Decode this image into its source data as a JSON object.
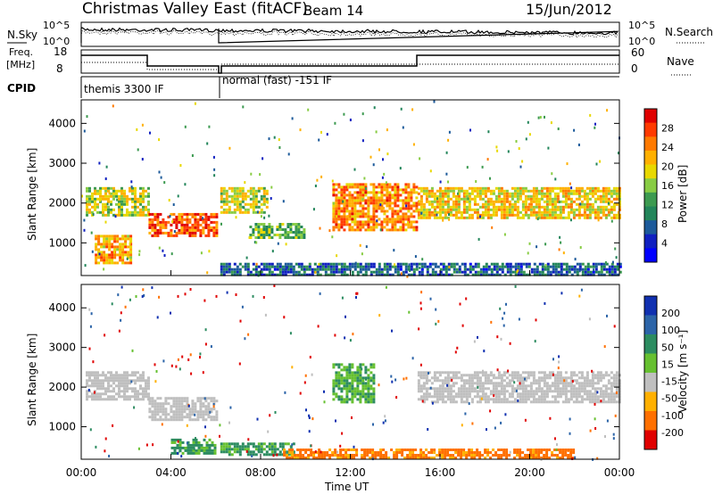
{
  "header": {
    "title": "Christmas Valley East (fitACF)",
    "beam": "Beam 14",
    "date": "15/Jun/2012"
  },
  "panels": {
    "nsky": {
      "label": "N.Sky",
      "ticks": [
        "10^5",
        "10^0"
      ],
      "right_ticks": [
        "10^5",
        "10^0"
      ],
      "right_label": "N.Search"
    },
    "freq": {
      "label_line1": "Freq.",
      "label_line2": "[MHz]",
      "ticks": [
        "18",
        "8"
      ],
      "right_ticks": [
        "60",
        "0"
      ],
      "right_label": "Nave"
    },
    "cpid": {
      "label": "CPID",
      "modes": [
        "themis 3300 IF",
        "normal (fast) -151 IF"
      ]
    }
  },
  "colorbars": {
    "power": {
      "label": "Power [dB]",
      "ticks": [
        "28",
        "24",
        "20",
        "16",
        "12",
        "8",
        "4"
      ],
      "colors": [
        "#e00000",
        "#ff3a00",
        "#ff7a00",
        "#ffb000",
        "#e8d800",
        "#88cc44",
        "#3c9a50",
        "#22855a",
        "#1c5a9a",
        "#1020c0",
        "#0000ff"
      ]
    },
    "velocity": {
      "label": "Velocity [m s⁻¹]",
      "ticks": [
        "200",
        "100",
        "50",
        "15",
        "-15",
        "-50",
        "-100",
        "-200"
      ],
      "colors": [
        "#1030b0",
        "#2c64a8",
        "#2c8c60",
        "#66c030",
        "#bfbfbf",
        "#ffb000",
        "#ff7000",
        "#e00000"
      ]
    }
  },
  "axes": {
    "ylabel": "Slant Range [km]",
    "yticks": [
      "4000",
      "3000",
      "2000",
      "1000"
    ],
    "xlabel": "Time UT",
    "xticks": [
      "00:00",
      "04:00",
      "08:00",
      "12:00",
      "16:00",
      "20:00",
      "00:00"
    ]
  },
  "chart_data": [
    {
      "type": "heatmap",
      "title": "",
      "xlabel": "",
      "ylabel": "Slant Range [km]",
      "x_range_hours": [
        0,
        24
      ],
      "ylim_km": [
        180,
        4590
      ],
      "colorbar": "Power [dB]",
      "bands": [
        {
          "x": [
            0.2,
            3.0
          ],
          "y": [
            1700,
            2400
          ],
          "value_db": 18
        },
        {
          "x": [
            0.6,
            2.2
          ],
          "y": [
            500,
            1200
          ],
          "value_db": 22
        },
        {
          "x": [
            3.0,
            6.0
          ],
          "y": [
            1150,
            1750
          ],
          "value_db": 26
        },
        {
          "x": [
            6.2,
            8.3
          ],
          "y": [
            1750,
            2400
          ],
          "value_db": 18
        },
        {
          "x": [
            7.5,
            10.0
          ],
          "y": [
            1100,
            1500
          ],
          "value_db": 14
        },
        {
          "x": [
            11.2,
            15.0
          ],
          "y": [
            1300,
            2500
          ],
          "value_db": 24
        },
        {
          "x": [
            15.0,
            24.0
          ],
          "y": [
            1600,
            2400
          ],
          "value_db": 20
        },
        {
          "x": [
            6.2,
            24.0
          ],
          "y": [
            200,
            500
          ],
          "value_db": 8
        }
      ]
    },
    {
      "type": "heatmap",
      "title": "",
      "xlabel": "Time UT",
      "ylabel": "Slant Range [km]",
      "x_range_hours": [
        0,
        24
      ],
      "ylim_km": [
        180,
        4590
      ],
      "colorbar": "Velocity [m s⁻¹]",
      "bands": [
        {
          "x": [
            0.2,
            3.0
          ],
          "y": [
            1700,
            2400
          ],
          "value_ms": 0
        },
        {
          "x": [
            3.0,
            6.0
          ],
          "y": [
            1150,
            1750
          ],
          "value_ms": 0
        },
        {
          "x": [
            4.0,
            6.0
          ],
          "y": [
            300,
            700
          ],
          "value_ms": 40
        },
        {
          "x": [
            6.2,
            9.5
          ],
          "y": [
            300,
            600
          ],
          "value_ms": 40
        },
        {
          "x": [
            11.2,
            13.0
          ],
          "y": [
            1600,
            2600
          ],
          "value_ms": 30
        },
        {
          "x": [
            15.0,
            24.0
          ],
          "y": [
            1600,
            2400
          ],
          "value_ms": 0
        },
        {
          "x": [
            9.0,
            22.0
          ],
          "y": [
            200,
            450
          ],
          "value_ms": -40
        }
      ]
    }
  ]
}
